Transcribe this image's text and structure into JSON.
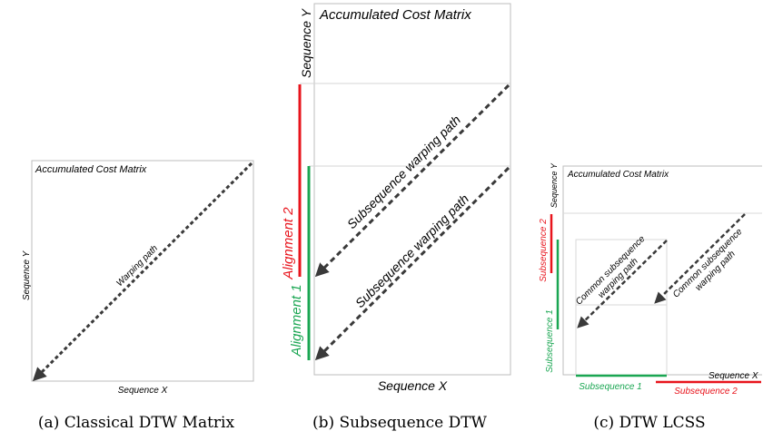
{
  "panel_a": {
    "matrix_title": "Accumulated Cost Matrix",
    "y_label": "Sequence Y",
    "x_label": "Sequence X",
    "path_label": "Warping path",
    "caption": "(a) Classical DTW Matrix"
  },
  "panel_b": {
    "matrix_title": "Accumulated Cost Matrix",
    "y_label": "Sequence Y",
    "x_label": "Sequence X",
    "path_label_1": "Subsequence warping path",
    "path_label_2": "Subsequence warping path",
    "alignment_1": "Alignment 1",
    "alignment_2": "Alignment 2",
    "caption": "(b) Subsequence DTW"
  },
  "panel_c": {
    "matrix_title": "Accumulated Cost Matrix",
    "y_label": "Sequence Y",
    "x_label": "Sequence X",
    "path_label_1_line1": "Common subsequence",
    "path_label_1_line2": "warping path",
    "path_label_2_line1": "Common subsequence",
    "path_label_2_line2": "warping path",
    "subseq_1_y": "Subsequence 1",
    "subseq_2_y": "Subsequence 2",
    "subseq_1_x": "Subsequence 1",
    "subseq_2_x": "Subsequence 2",
    "caption": "(c) DTW LCSS"
  },
  "colors": {
    "red": "#e8141c",
    "green": "#1aa652",
    "path": "#3a3a3a",
    "frame": "#bcbcbc"
  }
}
